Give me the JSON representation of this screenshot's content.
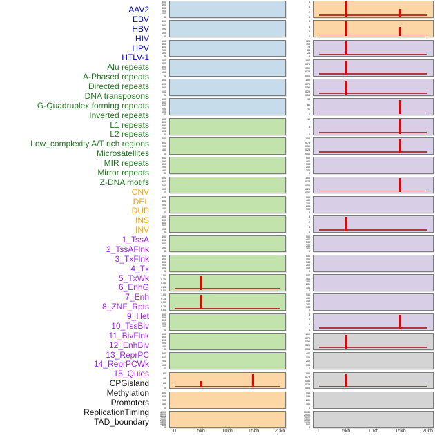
{
  "chart_data": {
    "type": "area",
    "description": "Small-multiples genomic feature profile grid: 44 feature rows, two columns of 22 mini profile panels over a 0-20kb window, red spikes mark enrichment peaks near 5kb and 15kb",
    "x_axis": {
      "range_kb": [
        0,
        20
      ],
      "ticks": [
        {
          "kb": 0,
          "label": "0"
        },
        {
          "kb": 5,
          "label": "5kb"
        },
        {
          "kb": 10,
          "label": "10kb"
        },
        {
          "kb": 15,
          "label": "15kb"
        },
        {
          "kb": 20,
          "label": "20kb"
        }
      ]
    },
    "label_colors": {
      "virus": "#0000e0",
      "repeat": "#1f7a1f",
      "sv": "#ffa500",
      "chromhmm": "#a020f0",
      "other": "#141414"
    },
    "panel_fills": {
      "blue": "#c6dcea",
      "green": "#c2e3ab",
      "orange": "#fcd6a4",
      "purple": "#d8cee6",
      "gray": "#d4d4d4"
    },
    "spike_color": "#ee0000",
    "baseline_color": "rgba(170,30,30,0.85)",
    "row_labels": [
      {
        "text": "AAV2",
        "group": "virus"
      },
      {
        "text": "EBV",
        "group": "virus"
      },
      {
        "text": "HBV",
        "group": "virus"
      },
      {
        "text": "HIV",
        "group": "virus"
      },
      {
        "text": "HPV",
        "group": "virus"
      },
      {
        "text": "HTLV-1",
        "group": "virus"
      },
      {
        "text": "Alu repeats",
        "group": "repeat"
      },
      {
        "text": "A-Phased repeats",
        "group": "repeat"
      },
      {
        "text": "Directed repeats",
        "group": "repeat"
      },
      {
        "text": "DNA transposons",
        "group": "repeat"
      },
      {
        "text": "G-Quadruplex forming repeats",
        "group": "repeat"
      },
      {
        "text": "Inverted repeats",
        "group": "repeat"
      },
      {
        "text": "L1 repeats",
        "group": "repeat"
      },
      {
        "text": "L2 repeats",
        "group": "repeat"
      },
      {
        "text": "Low_complexity A/T rich regions",
        "group": "repeat"
      },
      {
        "text": "Microsatellites",
        "group": "repeat"
      },
      {
        "text": "MIR repeats",
        "group": "repeat"
      },
      {
        "text": "Mirror repeats",
        "group": "repeat"
      },
      {
        "text": "Z-DNA motifs",
        "group": "repeat"
      },
      {
        "text": "CNV",
        "group": "sv"
      },
      {
        "text": "DEL",
        "group": "sv"
      },
      {
        "text": "DUP",
        "group": "sv"
      },
      {
        "text": "INS",
        "group": "sv"
      },
      {
        "text": "INV",
        "group": "sv"
      },
      {
        "text": "1_TssA",
        "group": "chromhmm"
      },
      {
        "text": "2_TssAFlnk",
        "group": "chromhmm"
      },
      {
        "text": "3_TxFlnk",
        "group": "chromhmm"
      },
      {
        "text": "4_Tx",
        "group": "chromhmm"
      },
      {
        "text": "5_TxWk",
        "group": "chromhmm"
      },
      {
        "text": "6_EnhG",
        "group": "chromhmm"
      },
      {
        "text": "7_Enh",
        "group": "chromhmm"
      },
      {
        "text": "8_ZNF_Rpts",
        "group": "chromhmm"
      },
      {
        "text": "9_Het",
        "group": "chromhmm"
      },
      {
        "text": "10_TssBiv",
        "group": "chromhmm"
      },
      {
        "text": "11_BivFlnk",
        "group": "chromhmm"
      },
      {
        "text": "12_EnhBiv",
        "group": "chromhmm"
      },
      {
        "text": "13_ReprPC",
        "group": "chromhmm"
      },
      {
        "text": "14_ReprPCWk",
        "group": "chromhmm"
      },
      {
        "text": "15_Quies",
        "group": "chromhmm"
      },
      {
        "text": "CPGisland",
        "group": "other"
      },
      {
        "text": "Methylation",
        "group": "other"
      },
      {
        "text": "Promoters",
        "group": "other"
      },
      {
        "text": "ReplicationTiming",
        "group": "other"
      },
      {
        "text": "TAD_boundary",
        "group": "other"
      }
    ],
    "columns": [
      {
        "name": "left",
        "panels": [
          {
            "bg": "blue",
            "yticks": [
              "500",
              "400",
              "300",
              "200",
              "100",
              "0"
            ],
            "spikes": [],
            "baseline": false
          },
          {
            "bg": "blue",
            "yticks": [
              "400",
              "300",
              "200",
              "100",
              "0"
            ],
            "spikes": [],
            "baseline": false
          },
          {
            "bg": "blue",
            "yticks": [
              "500",
              "400",
              "300",
              "200",
              "100",
              "0"
            ],
            "spikes": [],
            "baseline": false
          },
          {
            "bg": "blue",
            "yticks": [
              "500",
              "400",
              "300",
              "200",
              "100",
              "0"
            ],
            "spikes": [],
            "baseline": false
          },
          {
            "bg": "blue",
            "yticks": [
              "400",
              "300",
              "200",
              "100",
              "0"
            ],
            "spikes": [],
            "baseline": false
          },
          {
            "bg": "blue",
            "yticks": [
              "500",
              "400",
              "300",
              "200",
              "100",
              "0"
            ],
            "spikes": [],
            "baseline": false
          },
          {
            "bg": "green",
            "yticks": [
              "500",
              "400",
              "300",
              "200",
              "100",
              "0"
            ],
            "spikes": [],
            "baseline": false
          },
          {
            "bg": "green",
            "yticks": [
              "400",
              "300",
              "200",
              "100",
              "0"
            ],
            "spikes": [],
            "baseline": false
          },
          {
            "bg": "green",
            "yticks": [
              "500",
              "400",
              "300",
              "200",
              "100",
              "0"
            ],
            "spikes": [],
            "baseline": false
          },
          {
            "bg": "green",
            "yticks": [
              "400",
              "300",
              "200",
              "100",
              "0"
            ],
            "spikes": [],
            "baseline": false
          },
          {
            "bg": "green",
            "yticks": [
              "400",
              "300",
              "200",
              "100",
              "0"
            ],
            "spikes": [],
            "baseline": false
          },
          {
            "bg": "green",
            "yticks": [
              "500",
              "400",
              "300",
              "200",
              "100",
              "0"
            ],
            "spikes": [],
            "baseline": false
          },
          {
            "bg": "green",
            "yticks": [
              "400",
              "300",
              "200",
              "100",
              "0"
            ],
            "spikes": [],
            "baseline": false
          },
          {
            "bg": "green",
            "yticks": [
              "500",
              "400",
              "300",
              "200",
              "100",
              "0"
            ],
            "spikes": [],
            "baseline": false
          },
          {
            "bg": "green",
            "yticks": [
              "1.00",
              "0.75",
              "0.50",
              "0.25",
              "0.00"
            ],
            "spikes": [
              {
                "x_kb": 5,
                "h": 0.97
              }
            ],
            "baseline": true
          },
          {
            "bg": "green",
            "yticks": [
              "1.00",
              "0.75",
              "0.50",
              "0.25",
              "0.00"
            ],
            "spikes": [
              {
                "x_kb": 5,
                "h": 0.97
              }
            ],
            "baseline": true
          },
          {
            "bg": "green",
            "yticks": [
              "500",
              "400",
              "300",
              "200",
              "100",
              "0"
            ],
            "spikes": [],
            "baseline": false
          },
          {
            "bg": "green",
            "yticks": [
              "500",
              "400",
              "300",
              "200",
              "100",
              "0"
            ],
            "spikes": [],
            "baseline": false
          },
          {
            "bg": "green",
            "yticks": [
              "400",
              "300",
              "200",
              "100",
              "0"
            ],
            "spikes": [],
            "baseline": false
          },
          {
            "bg": "orange",
            "yticks": [
              "60",
              "40",
              "20",
              "0"
            ],
            "spikes": [
              {
                "x_kb": 5,
                "h": 0.45
              },
              {
                "x_kb": 15,
                "h": 0.92
              }
            ],
            "baseline": true
          },
          {
            "bg": "orange",
            "yticks": [
              "400",
              "300",
              "200",
              "100",
              "0"
            ],
            "spikes": [],
            "baseline": false
          },
          {
            "bg": "orange",
            "yticks": [
              "4000",
              "3500",
              "3000",
              "2500",
              "2000",
              "1500",
              "1000",
              "500",
              "0"
            ],
            "spikes": [],
            "baseline": false
          }
        ]
      },
      {
        "name": "right",
        "panels": [
          {
            "bg": "orange",
            "yticks": [
              "6",
              "4",
              "2",
              "0"
            ],
            "spikes": [
              {
                "x_kb": 5,
                "h": 1.0
              },
              {
                "x_kb": 15,
                "h": 0.5
              }
            ],
            "baseline": true
          },
          {
            "bg": "orange",
            "yticks": [
              "6",
              "4",
              "2",
              "0"
            ],
            "spikes": [
              {
                "x_kb": 5,
                "h": 1.0
              },
              {
                "x_kb": 15,
                "h": 0.6
              }
            ],
            "baseline": true
          },
          {
            "bg": "purple",
            "yticks": [
              "125",
              "100",
              "75",
              "50",
              "25",
              "0"
            ],
            "spikes": [
              {
                "x_kb": 5,
                "h": 0.97
              }
            ],
            "baseline": true
          },
          {
            "bg": "purple",
            "yticks": [
              "1.00",
              "0.75",
              "0.50",
              "0.25",
              "0.00"
            ],
            "spikes": [
              {
                "x_kb": 5,
                "h": 0.97
              }
            ],
            "baseline": true
          },
          {
            "bg": "purple",
            "yticks": [
              "1.00",
              "0.75",
              "0.50",
              "0.25",
              "0.00"
            ],
            "spikes": [
              {
                "x_kb": 5,
                "h": 0.93
              }
            ],
            "baseline": true
          },
          {
            "bg": "purple",
            "yticks": [
              "90",
              "60",
              "30",
              "0"
            ],
            "spikes": [
              {
                "x_kb": 15,
                "h": 0.97
              }
            ],
            "baseline": true
          },
          {
            "bg": "purple",
            "yticks": [
              "10",
              "5",
              "0"
            ],
            "spikes": [
              {
                "x_kb": 15,
                "h": 0.95
              }
            ],
            "baseline": true
          },
          {
            "bg": "purple",
            "yticks": [
              "1.00",
              "0.75",
              "0.50",
              "0.25",
              "0.00"
            ],
            "spikes": [
              {
                "x_kb": 15,
                "h": 0.95
              }
            ],
            "baseline": true
          },
          {
            "bg": "purple",
            "yticks": [
              "500",
              "400",
              "300",
              "200",
              "100",
              "0"
            ],
            "spikes": [],
            "baseline": false
          },
          {
            "bg": "purple",
            "yticks": [
              "1.00",
              "0.75",
              "0.50",
              "0.25",
              "0.00"
            ],
            "spikes": [
              {
                "x_kb": 15,
                "h": 0.95
              }
            ],
            "baseline": true
          },
          {
            "bg": "purple",
            "yticks": [
              "500",
              "400",
              "300",
              "200",
              "100",
              "0"
            ],
            "spikes": [],
            "baseline": false
          },
          {
            "bg": "purple",
            "yticks": [
              "3",
              "2",
              "1",
              "0"
            ],
            "spikes": [
              {
                "x_kb": 5,
                "h": 0.97
              }
            ],
            "baseline": true
          },
          {
            "bg": "purple",
            "yticks": [
              "500",
              "400",
              "300",
              "200",
              "100",
              "0"
            ],
            "spikes": [],
            "baseline": false
          },
          {
            "bg": "purple",
            "yticks": [
              "500",
              "400",
              "300",
              "200",
              "100",
              "0"
            ],
            "spikes": [],
            "baseline": false
          },
          {
            "bg": "purple",
            "yticks": [
              "500",
              "400",
              "300",
              "200",
              "100",
              "0"
            ],
            "spikes": [],
            "baseline": false
          },
          {
            "bg": "purple",
            "yticks": [
              "500",
              "400",
              "300",
              "200",
              "100",
              "0"
            ],
            "spikes": [],
            "baseline": false
          },
          {
            "bg": "purple",
            "yticks": [
              "3",
              "2",
              "1",
              "0"
            ],
            "spikes": [
              {
                "x_kb": 15,
                "h": 0.95
              }
            ],
            "baseline": true
          },
          {
            "bg": "gray",
            "yticks": [
              "1.00",
              "0.75",
              "0.50",
              "0.25",
              "0.00"
            ],
            "spikes": [
              {
                "x_kb": 5,
                "h": 0.93
              }
            ],
            "baseline": true
          },
          {
            "bg": "gray",
            "yticks": [
              "400",
              "300",
              "200",
              "100",
              "0"
            ],
            "spikes": [],
            "baseline": false
          },
          {
            "bg": "gray",
            "yticks": [
              "1.00",
              "0.75",
              "0.50",
              "0.25",
              "0.00"
            ],
            "spikes": [
              {
                "x_kb": 5,
                "h": 0.93
              }
            ],
            "baseline": true
          },
          {
            "bg": "gray",
            "yticks": [
              "400",
              "300",
              "200",
              "100",
              "0"
            ],
            "spikes": [],
            "baseline": false
          },
          {
            "bg": "gray",
            "yticks": [
              "3000",
              "2500",
              "2000",
              "1500",
              "1000",
              "500",
              "0"
            ],
            "spikes": [],
            "baseline": false
          }
        ]
      }
    ]
  }
}
